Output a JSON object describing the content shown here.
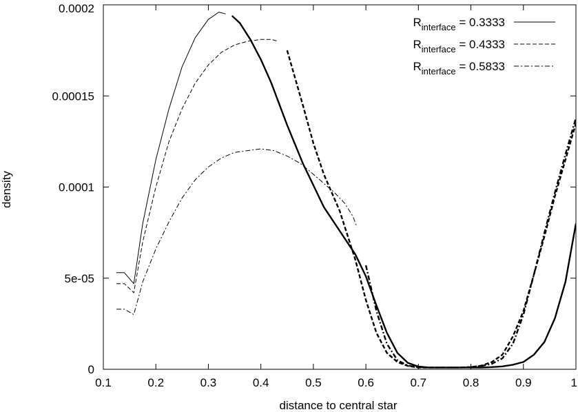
{
  "chart_data": {
    "type": "line",
    "title": "",
    "xlabel": "distance to central star",
    "ylabel": "density",
    "xlim": [
      0.1,
      1.0
    ],
    "ylim": [
      0,
      0.0002
    ],
    "xticks": [
      0.1,
      0.2,
      0.3,
      0.4,
      0.5,
      0.6,
      0.7,
      0.8,
      0.9,
      1.0
    ],
    "xtick_labels": [
      "0.1",
      "0.2",
      "0.3",
      "0.4",
      "0.5",
      "0.6",
      "0.7",
      "0.8",
      "0.9",
      "1"
    ],
    "yticks": [
      0,
      5e-05,
      0.0001,
      0.00015,
      0.0002
    ],
    "ytick_labels": [
      "0",
      "5e-05",
      "0.0001",
      "0.00015",
      "0.0002"
    ],
    "grid": false,
    "legend_position": "top-right",
    "series": [
      {
        "name": "R_interface = 0.3333",
        "legend_base": "R",
        "legend_sub": "interface",
        "legend_rest": " = 0.3333",
        "dash": "solid",
        "interface_x": 0.3333,
        "x": [
          0.125,
          0.14,
          0.158,
          0.175,
          0.2,
          0.225,
          0.25,
          0.275,
          0.3,
          0.32,
          0.333,
          0.345,
          0.36,
          0.38,
          0.4,
          0.42,
          0.45,
          0.48,
          0.5,
          0.52,
          0.55,
          0.58,
          0.6,
          0.62,
          0.64,
          0.66,
          0.68,
          0.7,
          0.72,
          0.75,
          0.78,
          0.8,
          0.82,
          0.84,
          0.86,
          0.88,
          0.9,
          0.92,
          0.94,
          0.96,
          0.98,
          1.0
        ],
        "y": [
          5.3e-05,
          5.3e-05,
          4.7e-05,
          8e-05,
          0.000115,
          0.000143,
          0.000166,
          0.000182,
          0.000192,
          0.000196,
          0.000195,
          0.000194,
          0.00019,
          0.000181,
          0.00017,
          0.000157,
          0.000134,
          0.000113,
          0.000101,
          8.9e-05,
          7.6e-05,
          6.3e-05,
          5.1e-05,
          3.5e-05,
          2e-05,
          9e-06,
          3.5e-06,
          1.5e-06,
          1e-06,
          1e-06,
          1e-06,
          1e-06,
          1e-06,
          1.2e-06,
          1.6e-06,
          2.5e-06,
          4e-06,
          8e-06,
          1.5e-05,
          2.8e-05,
          4.8e-05,
          8e-05
        ]
      },
      {
        "name": "R_interface = 0.4333",
        "legend_base": "R",
        "legend_sub": "interface",
        "legend_rest": " = 0.4333",
        "dash": "dashed",
        "interface_x": 0.4333,
        "x": [
          0.125,
          0.14,
          0.158,
          0.175,
          0.2,
          0.225,
          0.25,
          0.275,
          0.3,
          0.325,
          0.35,
          0.375,
          0.4,
          0.42,
          0.433,
          0.45,
          0.48,
          0.5,
          0.52,
          0.55,
          0.58,
          0.6,
          0.62,
          0.64,
          0.66,
          0.68,
          0.7,
          0.72,
          0.75,
          0.78,
          0.8,
          0.82,
          0.84,
          0.86,
          0.88,
          0.9,
          0.92,
          0.94,
          0.96,
          0.98,
          1.0
        ],
        "y": [
          4.7e-05,
          4.7e-05,
          4.2e-05,
          7e-05,
          0.0001,
          0.000125,
          0.000143,
          0.000157,
          0.000167,
          0.000174,
          0.000178,
          0.00018,
          0.000181,
          0.000181,
          0.00018,
          0.000175,
          0.000145,
          0.000124,
          0.000107,
          8.7e-05,
          6e-05,
          3.8e-05,
          2e-05,
          9e-06,
          4e-06,
          1.8e-06,
          1e-06,
          1e-06,
          1e-06,
          1e-06,
          1.2e-06,
          2e-06,
          4e-06,
          8e-06,
          1.8e-05,
          3.2e-05,
          5.2e-05,
          7.3e-05,
          9.5e-05,
          0.000115,
          0.000135
        ]
      },
      {
        "name": "R_interface = 0.5833",
        "legend_base": "R",
        "legend_sub": "interface",
        "legend_rest": " = 0.5833",
        "dash": "dashdot",
        "interface_x": 0.5833,
        "x": [
          0.125,
          0.14,
          0.158,
          0.175,
          0.2,
          0.225,
          0.25,
          0.275,
          0.3,
          0.325,
          0.35,
          0.375,
          0.4,
          0.425,
          0.45,
          0.475,
          0.5,
          0.52,
          0.54,
          0.56,
          0.575,
          0.583,
          0.6,
          0.62,
          0.64,
          0.66,
          0.68,
          0.7,
          0.72,
          0.75,
          0.78,
          0.8,
          0.82,
          0.84,
          0.86,
          0.88,
          0.9,
          0.92,
          0.94,
          0.96,
          0.98,
          1.0
        ],
        "y": [
          3.3e-05,
          3.3e-05,
          3e-05,
          4.8e-05,
          6.6e-05,
          8.1e-05,
          9.4e-05,
          0.000104,
          0.000111,
          0.000116,
          0.000119,
          0.00012,
          0.000121,
          0.00012,
          0.000117,
          0.000113,
          0.000107,
          0.000102,
          9.7e-05,
          9.1e-05,
          8.4e-05,
          7.8e-05,
          5.7e-05,
          3.2e-05,
          1.4e-05,
          5e-06,
          2e-06,
          1.2e-06,
          1e-06,
          1e-06,
          1e-06,
          1.2e-06,
          1.8e-06,
          3e-06,
          6e-06,
          1.4e-05,
          3e-05,
          5.2e-05,
          7.5e-05,
          9.7e-05,
          0.000118,
          0.000138
        ]
      }
    ]
  }
}
